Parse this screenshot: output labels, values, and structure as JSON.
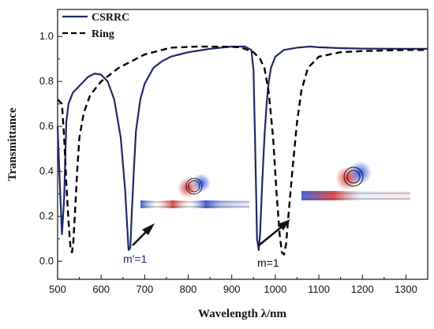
{
  "chart_data": {
    "type": "line",
    "xlabel": "Wavelength λ/nm",
    "ylabel": "Transmittance",
    "xlim": [
      500,
      1350
    ],
    "ylim": [
      -0.08,
      1.12
    ],
    "x_ticks": [
      500,
      600,
      700,
      800,
      900,
      1000,
      1100,
      1200,
      1300
    ],
    "y_ticks": [
      0.0,
      0.2,
      0.4,
      0.6,
      0.8,
      1.0
    ],
    "x_tick_labels": [
      "500",
      "600",
      "700",
      "800",
      "900",
      "1000",
      "1100",
      "1200",
      "1300"
    ],
    "y_tick_labels": [
      "0.0",
      "0.2",
      "0.4",
      "0.6",
      "0.8",
      "1.0"
    ],
    "legend_position": "top-left",
    "grid": false,
    "series": [
      {
        "name": "CSRRC",
        "style": "solid",
        "color": "#1f2a66",
        "x": [
          500,
          505,
          510,
          515,
          520,
          525,
          535,
          550,
          570,
          585,
          600,
          615,
          630,
          645,
          655,
          660,
          663,
          667,
          670,
          675,
          680,
          690,
          700,
          720,
          740,
          760,
          780,
          800,
          850,
          900,
          930,
          945,
          950,
          955,
          958,
          962,
          965,
          970,
          975,
          980,
          985,
          990,
          1000,
          1020,
          1050,
          1080,
          1100,
          1150,
          1200,
          1300,
          1350
        ],
        "y": [
          0.6,
          0.35,
          0.12,
          0.28,
          0.62,
          0.7,
          0.75,
          0.78,
          0.82,
          0.835,
          0.83,
          0.8,
          0.72,
          0.55,
          0.32,
          0.15,
          0.05,
          0.06,
          0.2,
          0.4,
          0.58,
          0.72,
          0.79,
          0.86,
          0.89,
          0.91,
          0.92,
          0.93,
          0.945,
          0.955,
          0.955,
          0.94,
          0.85,
          0.4,
          0.1,
          0.05,
          0.12,
          0.35,
          0.55,
          0.7,
          0.8,
          0.86,
          0.91,
          0.94,
          0.95,
          0.955,
          0.952,
          0.948,
          0.946,
          0.945,
          0.945
        ]
      },
      {
        "name": "Ring",
        "style": "dashed",
        "color": "#000000",
        "x": [
          500,
          510,
          515,
          520,
          525,
          530,
          533,
          536,
          540,
          545,
          550,
          560,
          575,
          600,
          640,
          700,
          760,
          820,
          880,
          920,
          950,
          965,
          975,
          985,
          995,
          1003,
          1010,
          1015,
          1020,
          1025,
          1030,
          1040,
          1050,
          1060,
          1075,
          1100,
          1150,
          1200,
          1300,
          1350
        ],
        "y": [
          0.72,
          0.7,
          0.55,
          0.35,
          0.18,
          0.05,
          0.04,
          0.08,
          0.22,
          0.4,
          0.55,
          0.66,
          0.74,
          0.8,
          0.86,
          0.92,
          0.95,
          0.955,
          0.955,
          0.952,
          0.93,
          0.9,
          0.86,
          0.75,
          0.55,
          0.3,
          0.12,
          0.04,
          0.03,
          0.08,
          0.2,
          0.42,
          0.62,
          0.76,
          0.86,
          0.91,
          0.93,
          0.935,
          0.94,
          0.94
        ]
      }
    ],
    "annotations": [
      "m'=1",
      "m=1"
    ]
  }
}
